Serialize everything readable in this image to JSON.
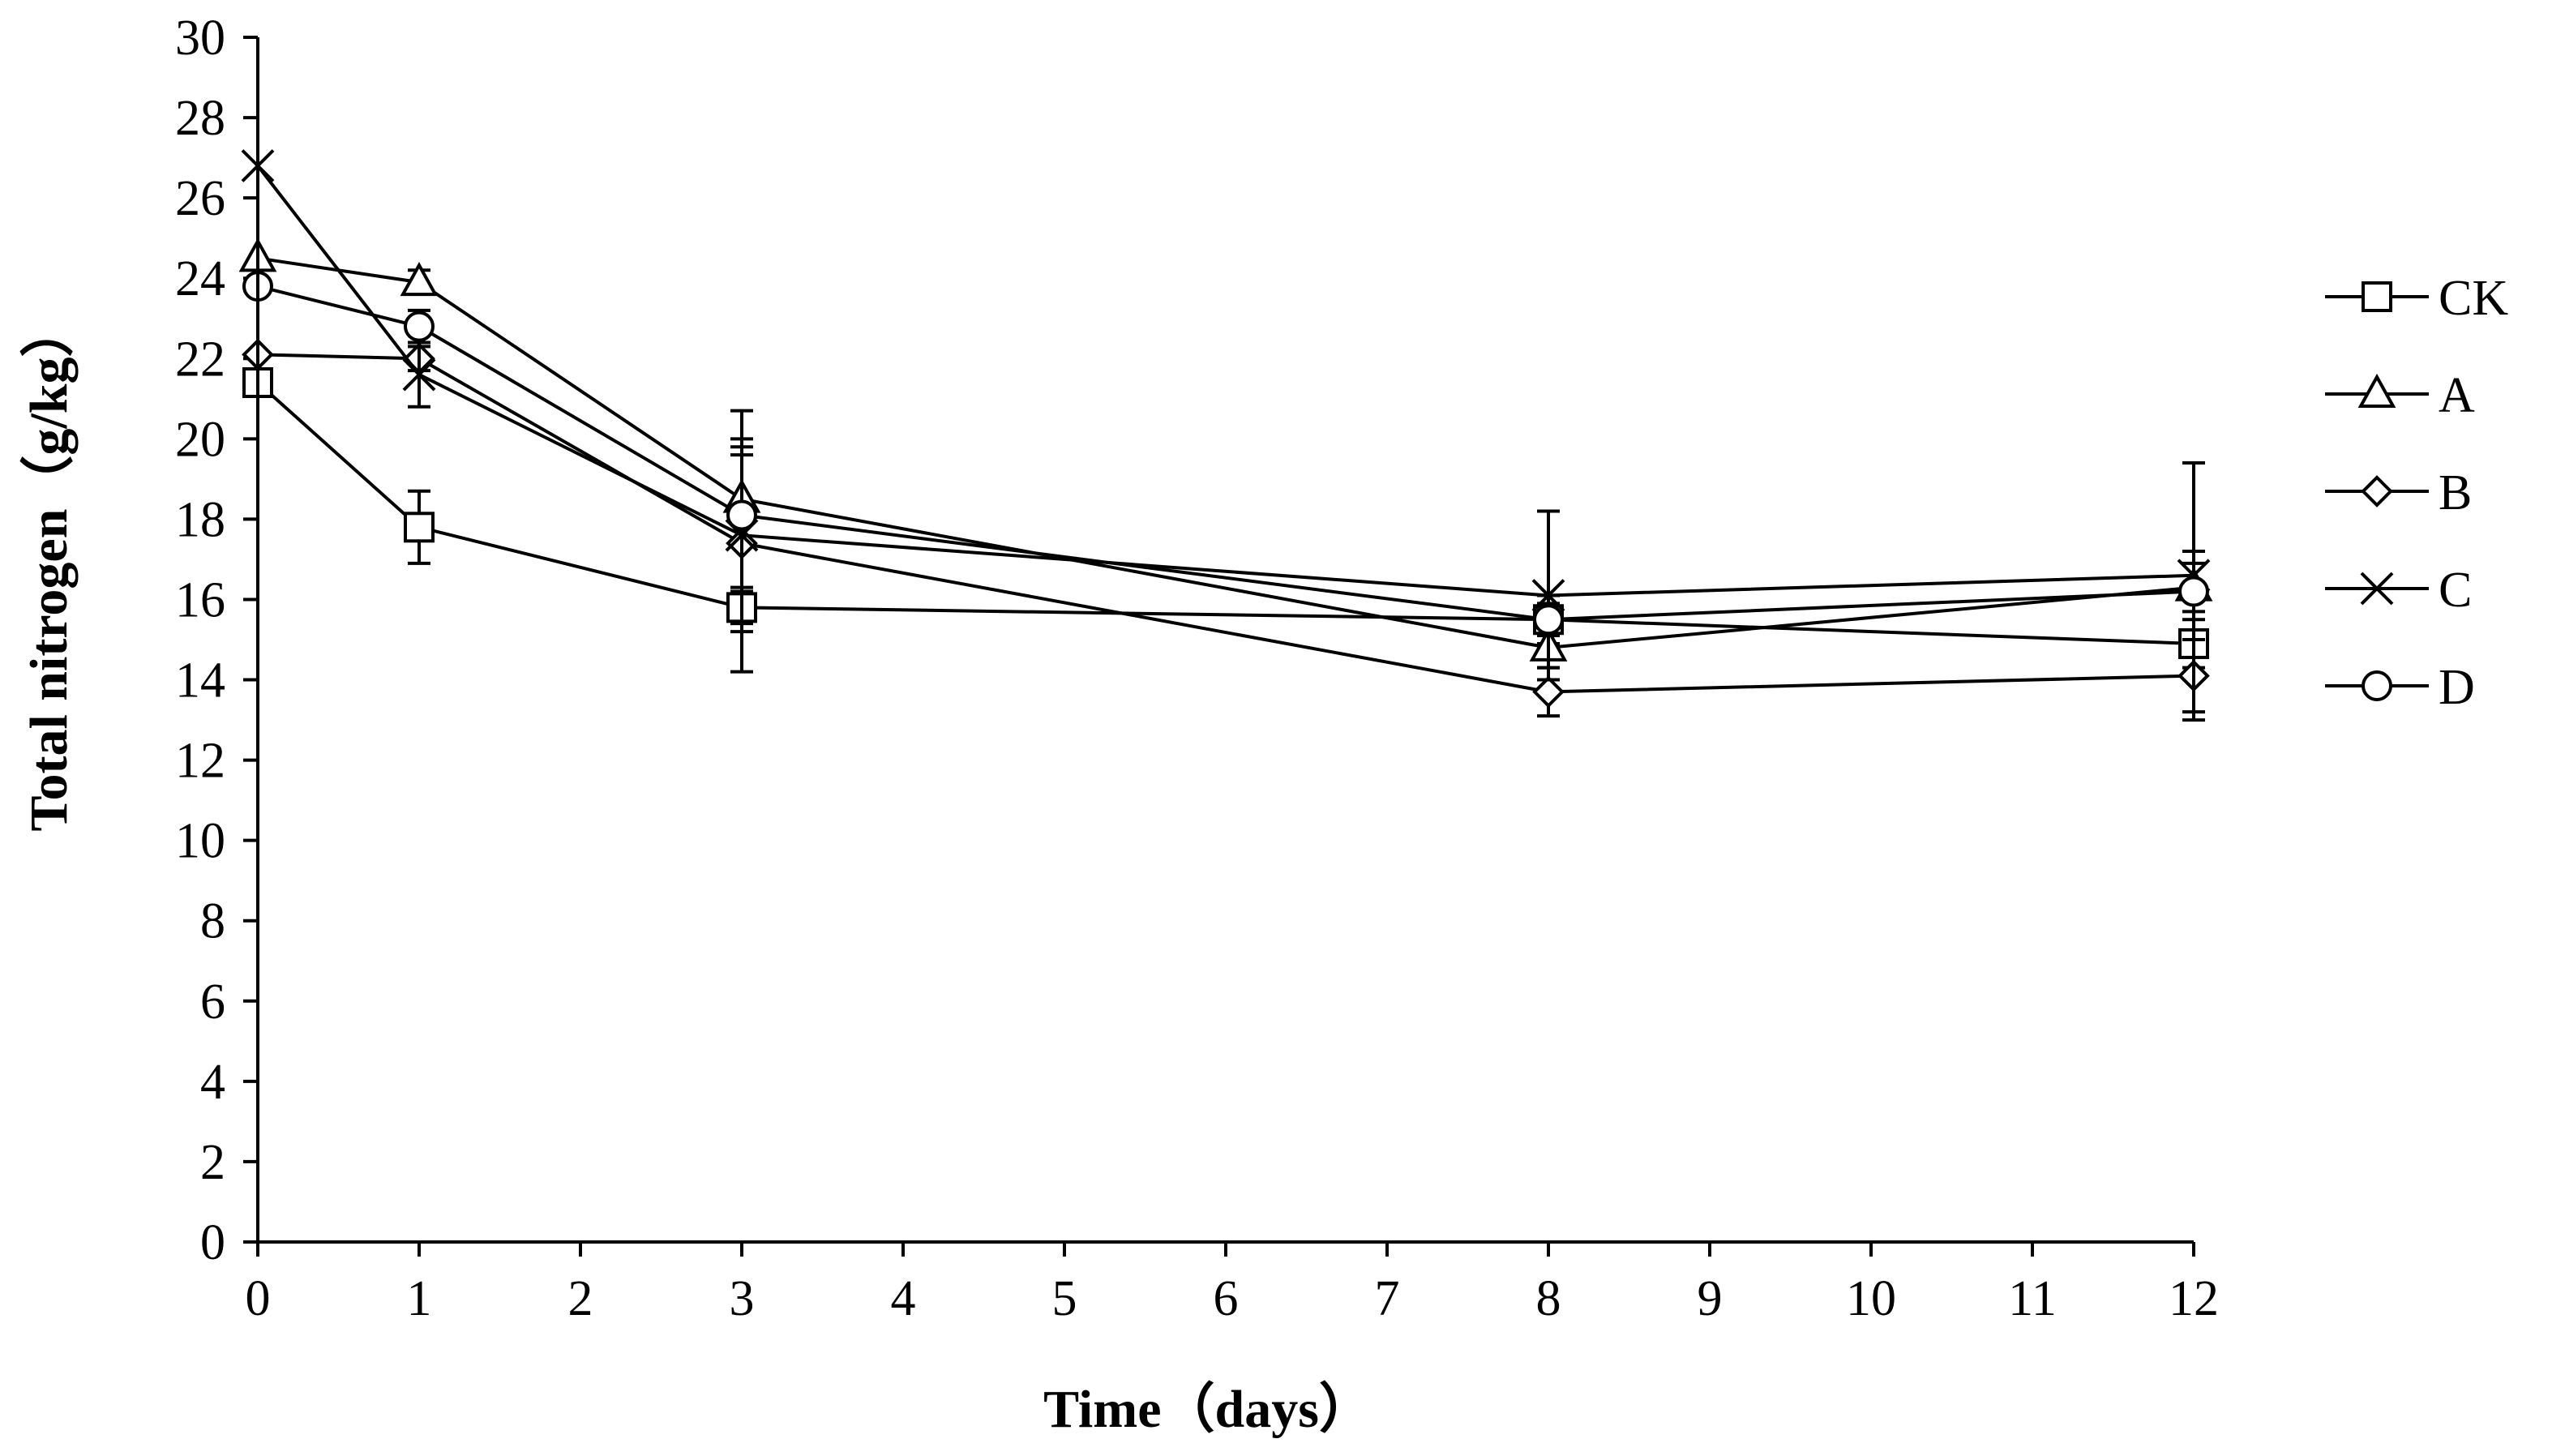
{
  "chart_data": {
    "type": "line",
    "title": "",
    "xlabel": "Time（days）",
    "ylabel": "Total nitrogen（g/kg）",
    "xlim": [
      0,
      12
    ],
    "ylim": [
      0,
      30
    ],
    "x_ticks": [
      0,
      1,
      2,
      3,
      4,
      5,
      6,
      7,
      8,
      9,
      10,
      11,
      12
    ],
    "y_ticks": [
      0,
      2,
      4,
      6,
      8,
      10,
      12,
      14,
      16,
      18,
      20,
      22,
      24,
      26,
      28,
      30
    ],
    "x": [
      0,
      1,
      3,
      8,
      12
    ],
    "grid": false,
    "legend_position": "right",
    "series": [
      {
        "name": "CK",
        "marker": "square",
        "values": [
          21.4,
          17.8,
          15.8,
          15.5,
          14.9
        ],
        "errors": [
          0,
          0.9,
          1.6,
          0.6,
          0.6
        ]
      },
      {
        "name": "A",
        "marker": "triangle",
        "values": [
          24.5,
          23.9,
          18.5,
          14.8,
          16.3
        ],
        "errors": [
          0,
          0.3,
          2.2,
          0.5,
          0.6
        ]
      },
      {
        "name": "B",
        "marker": "diamond",
        "values": [
          22.1,
          22.0,
          17.4,
          13.7,
          14.1
        ],
        "errors": [
          0,
          0.3,
          2.2,
          0.6,
          0.9
        ]
      },
      {
        "name": "C",
        "marker": "x",
        "values": [
          26.8,
          21.6,
          17.6,
          16.1,
          16.6
        ],
        "errors": [
          0,
          0.8,
          2.2,
          2.1,
          0.6
        ]
      },
      {
        "name": "D",
        "marker": "circle",
        "values": [
          23.8,
          22.8,
          18.1,
          15.5,
          16.2
        ],
        "errors": [
          0,
          0.4,
          1.9,
          0.4,
          3.2
        ]
      }
    ]
  }
}
